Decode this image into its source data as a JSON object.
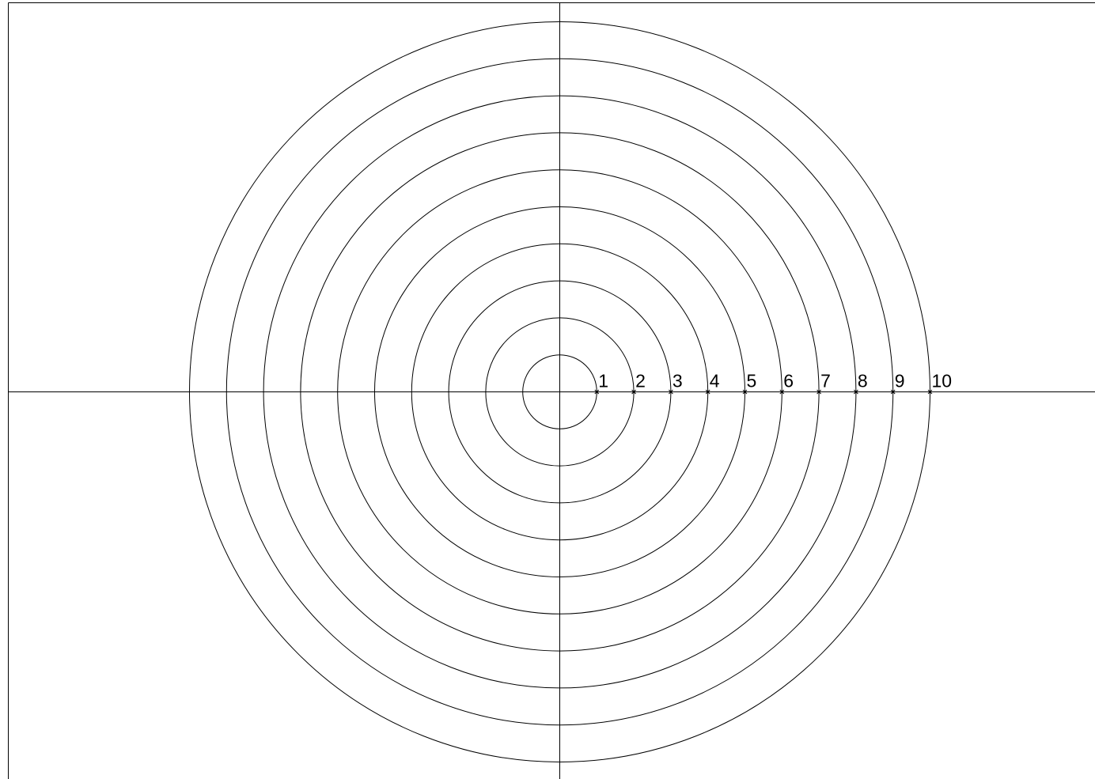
{
  "chart_data": {
    "type": "polar",
    "rlim": [
      0,
      10
    ],
    "rticks": [
      1,
      2,
      3,
      4,
      5,
      6,
      7,
      8,
      9,
      10
    ],
    "grid": true,
    "color": "#000000"
  }
}
